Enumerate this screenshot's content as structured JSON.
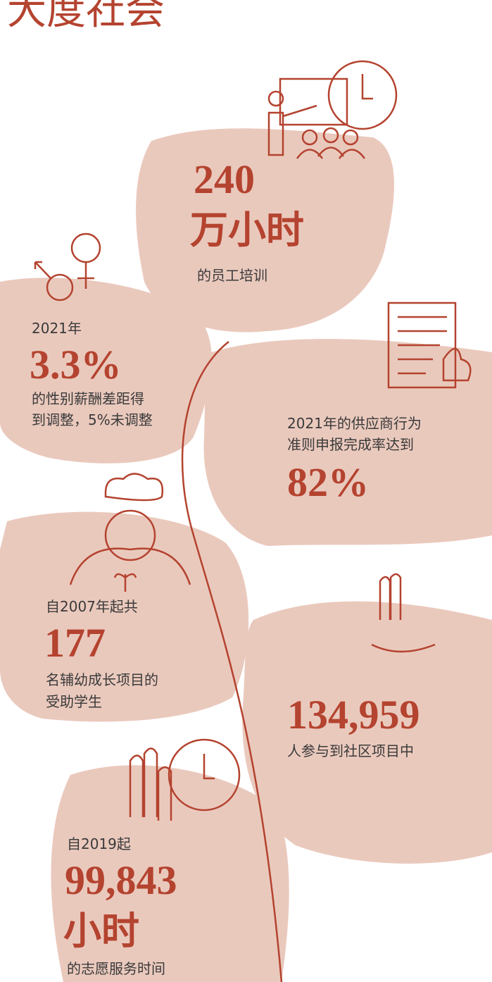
{
  "title": "大度社会",
  "items": [
    {
      "lines": [
        "240",
        "万小时",
        "的员工培训"
      ]
    },
    {
      "lines": [
        "2021年",
        "3.3%",
        "的性别薪酬差距得",
        "到调整，5%未调整"
      ]
    },
    {
      "lines": [
        "2021年的供应商行为",
        "准则申报完成率达到",
        "82%"
      ]
    },
    {
      "lines": [
        "自2007年起共",
        "177",
        "名辅幼成长项目的",
        "受助学生"
      ]
    },
    {
      "lines": [
        "134,959",
        "人参与到社区项目中"
      ]
    },
    {
      "lines": [
        "自2019起",
        "99,843",
        "小时",
        "的志愿服务时间"
      ]
    }
  ]
}
